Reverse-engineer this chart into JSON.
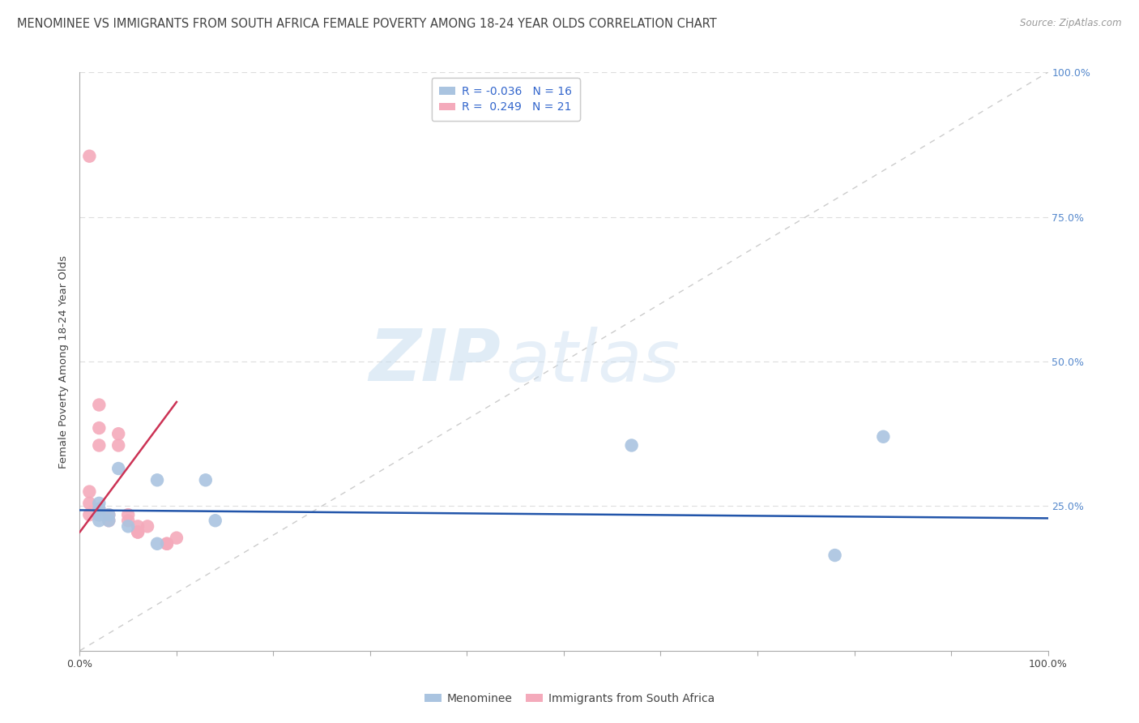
{
  "title": "MENOMINEE VS IMMIGRANTS FROM SOUTH AFRICA FEMALE POVERTY AMONG 18-24 YEAR OLDS CORRELATION CHART",
  "source": "Source: ZipAtlas.com",
  "ylabel": "Female Poverty Among 18-24 Year Olds",
  "xlim": [
    0.0,
    1.0
  ],
  "ylim": [
    0.0,
    1.0
  ],
  "legend_blue_R": "-0.036",
  "legend_blue_N": "16",
  "legend_pink_R": "0.249",
  "legend_pink_N": "21",
  "blue_color": "#aac4e0",
  "pink_color": "#f4aabb",
  "blue_line_color": "#2255aa",
  "pink_line_color": "#cc3355",
  "diag_line_color": "#cccccc",
  "grid_color": "#dddddd",
  "watermark_zip": "ZIP",
  "watermark_atlas": "atlas",
  "blue_scatter_x": [
    0.02,
    0.02,
    0.02,
    0.02,
    0.02,
    0.03,
    0.03,
    0.04,
    0.05,
    0.08,
    0.08,
    0.13,
    0.14,
    0.57,
    0.78,
    0.83
  ],
  "blue_scatter_y": [
    0.235,
    0.225,
    0.235,
    0.245,
    0.255,
    0.225,
    0.235,
    0.315,
    0.215,
    0.185,
    0.295,
    0.295,
    0.225,
    0.355,
    0.165,
    0.37
  ],
  "pink_scatter_x": [
    0.01,
    0.01,
    0.01,
    0.01,
    0.02,
    0.02,
    0.02,
    0.02,
    0.03,
    0.03,
    0.04,
    0.04,
    0.05,
    0.05,
    0.06,
    0.06,
    0.06,
    0.07,
    0.09,
    0.09,
    0.1
  ],
  "pink_scatter_y": [
    0.855,
    0.235,
    0.255,
    0.275,
    0.245,
    0.355,
    0.385,
    0.425,
    0.225,
    0.235,
    0.355,
    0.375,
    0.225,
    0.235,
    0.205,
    0.205,
    0.215,
    0.215,
    0.185,
    0.185,
    0.195
  ],
  "blue_trend_x": [
    0.0,
    1.0
  ],
  "blue_trend_y": [
    0.243,
    0.229
  ],
  "pink_trend_x": [
    0.0,
    0.1
  ],
  "pink_trend_y": [
    0.205,
    0.43
  ],
  "background_color": "#ffffff",
  "title_fontsize": 10.5,
  "axis_label_fontsize": 9.5,
  "tick_fontsize": 9,
  "legend_fontsize": 10,
  "right_tick_color": "#5588cc",
  "axis_color": "#aaaaaa",
  "text_color": "#444444",
  "source_color": "#999999"
}
